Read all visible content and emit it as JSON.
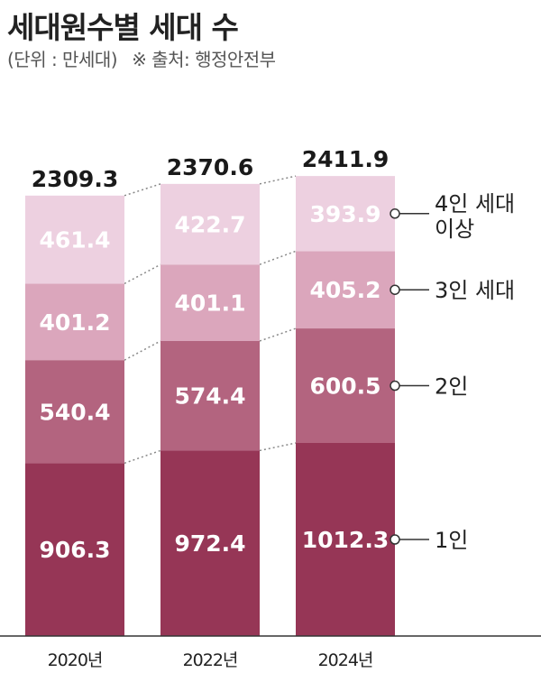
{
  "title": "세대원수별 세대 수",
  "unit_label": "(단위 : 만세대)",
  "source_label": "※ 출처: 행정안전부",
  "chart_data": {
    "type": "bar",
    "stacked": true,
    "categories": [
      "2020년",
      "2022년",
      "2024년"
    ],
    "series": [
      {
        "name": "1인",
        "values": [
          906.3,
          972.4,
          1012.3
        ],
        "color": "#963656"
      },
      {
        "name": "2인",
        "values": [
          540.4,
          574.4,
          600.5
        ],
        "color": "#b3647f"
      },
      {
        "name": "3인 세대",
        "values": [
          401.2,
          401.1,
          405.2
        ],
        "color": "#dba6bc"
      },
      {
        "name": "4인 세대 이상",
        "values": [
          461.4,
          422.7,
          393.9
        ],
        "color": "#edd0e0"
      }
    ],
    "totals": [
      2309.3,
      2370.6,
      2411.9
    ],
    "legend": "right",
    "grid": false
  }
}
